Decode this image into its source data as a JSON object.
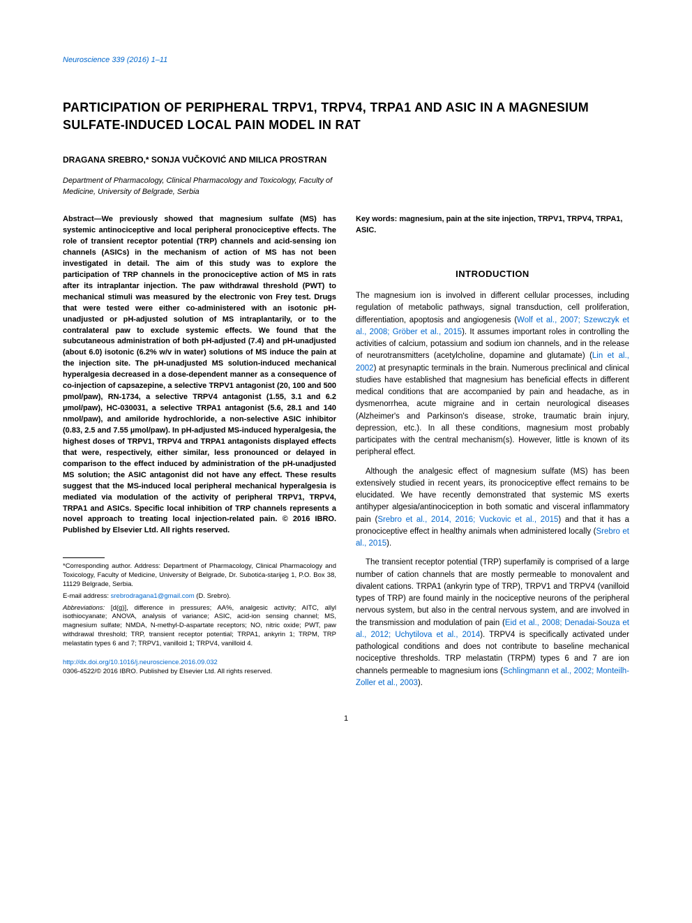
{
  "journal_ref": "Neuroscience 339 (2016) 1–11",
  "title": "PARTICIPATION OF PERIPHERAL TRPV1, TRPV4, TRPA1 AND ASIC IN A MAGNESIUM SULFATE-INDUCED LOCAL PAIN MODEL IN RAT",
  "authors": "DRAGANA SREBRO,* SONJA VUČKOVIĆ AND MILICA PROSTRAN",
  "affiliation": "Department of Pharmacology, Clinical Pharmacology and Toxicology, Faculty of Medicine, University of Belgrade, Serbia",
  "abstract_lead": "Abstract—",
  "abstract_body": "We previously showed that magnesium sulfate (MS) has systemic antinociceptive and local peripheral pronociceptive effects. The role of transient receptor potential (TRP) channels and acid-sensing ion channels (ASICs) in the mechanism of action of MS has not been investigated in detail. The aim of this study was to explore the participation of TRP channels in the pronociceptive action of MS in rats after its intraplantar injection. The paw withdrawal threshold (PWT) to mechanical stimuli was measured by the electronic von Frey test. Drugs that were tested were either co-administered with an isotonic pH-unadjusted or pH-adjusted solution of MS intraplantarily, or to the contralateral paw to exclude systemic effects. We found that the subcutaneous administration of both pH-adjusted (7.4) and pH-unadjusted (about 6.0) isotonic (6.2% w/v in water) solutions of MS induce the pain at the injection site. The pH-unadjusted MS solution-induced mechanical hyperalgesia decreased in a dose-dependent manner as a consequence of co-injection of capsazepine, a selective TRPV1 antagonist (20, 100 and 500 pmol/paw), RN-1734, a selective TRPV4 antagonist (1.55, 3.1 and 6.2 µmol/paw), HC-030031, a selective TRPA1 antagonist (5.6, 28.1 and 140 nmol/paw), and amiloride hydrochloride, a non-selective ASIC inhibitor (0.83, 2.5 and 7.55 µmol/paw). In pH-adjusted MS-induced hyperalgesia, the highest doses of TRPV1, TRPV4 and TRPA1 antagonists displayed effects that were, respectively, either similar, less pronounced or delayed in comparison to the effect induced by administration of the pH-unadjusted MS solution; the ASIC antagonist did not have any effect. These results suggest that the MS-induced local peripheral mechanical hyperalgesia is mediated via modulation of the activity of peripheral TRPV1, TRPV4, TRPA1 and ASICs. Specific local inhibition of TRP channels represents a novel approach to treating local injection-related pain. © 2016 IBRO. Published by Elsevier Ltd. All rights reserved.",
  "keywords": "Key words: magnesium, pain at the site injection, TRPV1, TRPV4, TRPA1, ASIC.",
  "section_intro": "INTRODUCTION",
  "intro_p1_a": "The magnesium ion is involved in different cellular processes, including regulation of metabolic pathways, signal transduction, cell proliferation, differentiation, apoptosis and angiogenesis (",
  "intro_p1_cite1": "Wolf et al., 2007; Szewczyk et al., 2008; Gröber et al., 2015",
  "intro_p1_b": "). It assumes important roles in controlling the activities of calcium, potassium and sodium ion channels, and in the release of neurotransmitters (acetylcholine, dopamine and glutamate) (",
  "intro_p1_cite2": "Lin et al., 2002",
  "intro_p1_c": ") at presynaptic terminals in the brain. Numerous preclinical and clinical studies have established that magnesium has beneficial effects in different medical conditions that are accompanied by pain and headache, as in dysmenorrhea, acute migraine and in certain neurological diseases (Alzheimer's and Parkinson's disease, stroke, traumatic brain injury, depression, etc.). In all these conditions, magnesium most probably participates with the central mechanism(s). However, little is known of its peripheral effect.",
  "intro_p2_a": "Although the analgesic effect of magnesium sulfate (MS) has been extensively studied in recent years, its pronociceptive effect remains to be elucidated. We have recently demonstrated that systemic MS exerts antihyper algesia/antinociception in both somatic and visceral inflammatory pain (",
  "intro_p2_cite1": "Srebro et al., 2014, 2016; Vuckovic et al., 2015",
  "intro_p2_b": ") and that it has a pronociceptive effect in healthy animals when administered locally (",
  "intro_p2_cite2": "Srebro et al., 2015",
  "intro_p2_c": ").",
  "intro_p3_a": "The transient receptor potential (TRP) superfamily is comprised of a large number of cation channels that are mostly permeable to monovalent and divalent cations. TRPA1 (ankyrin type of TRP), TRPV1 and TRPV4 (vanilloid types of TRP) are found mainly in the nociceptive neurons of the peripheral nervous system, but also in the central nervous system, and are involved in the transmission and modulation of pain (",
  "intro_p3_cite1": "Eid et al., 2008; Denadai-Souza et al., 2012; Uchytilova et al., 2014",
  "intro_p3_b": "). TRPV4 is specifically activated under pathological conditions and does not contribute to baseline mechanical nociceptive thresholds. TRP melastatin (TRPM) types 6 and 7 are ion channels permeable to magnesium ions (",
  "intro_p3_cite2": "Schlingmann et al., 2002; Monteilh-Zoller et al., 2003",
  "intro_p3_c": ").",
  "footnote_corr": "*Corresponding author. Address: Department of Pharmacology, Clinical Pharmacology and Toxicology, Faculty of Medicine, University of Belgrade, Dr. Subotića-starijeg 1, P.O. Box 38, 11129 Belgrade, Serbia.",
  "footnote_email_label": "E-mail address: ",
  "footnote_email": "srebrodragana1@gmail.com",
  "footnote_email_tail": " (D. Srebro).",
  "footnote_abbrev_label": "Abbreviations:",
  "footnote_abbrev": " [d(g)], difference in pressures; AA%, analgesic activity; AITC, allyl isothiocyanate; ANOVA, analysis of variance; ASIC, acid-ion sensing channel; MS, magnesium sulfate; NMDA, N-methyl-D-aspartate receptors; NO, nitric oxide; PWT, paw withdrawal threshold; TRP, transient receptor potential; TRPA1, ankyrin 1; TRPM, TRP melastatin types 6 and 7; TRPV1, vanilloid 1; TRPV4, vanilloid 4.",
  "doi": "http://dx.doi.org/10.1016/j.neuroscience.2016.09.032",
  "copyright": "0306-4522/© 2016 IBRO. Published by Elsevier Ltd. All rights reserved.",
  "page_num": "1",
  "colors": {
    "link": "#0066cc",
    "text": "#000000",
    "bg": "#ffffff"
  }
}
